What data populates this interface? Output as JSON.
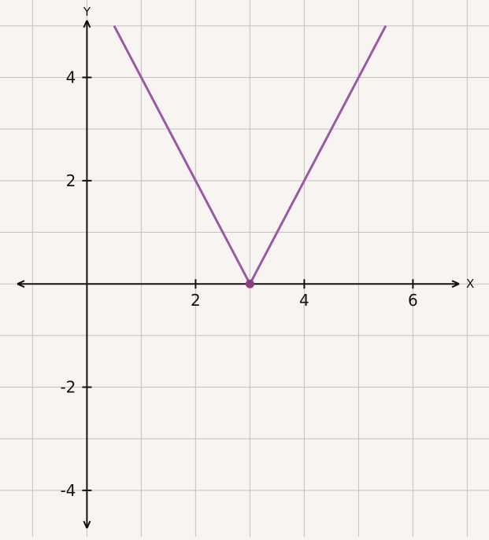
{
  "chart_data": {
    "type": "line",
    "title": "",
    "xlabel": "X",
    "ylabel": "Y",
    "xlim": [
      -1.6,
      7.4
    ],
    "ylim": [
      -4.9,
      5.5
    ],
    "grid": true,
    "x_ticks": [
      2,
      4,
      6
    ],
    "x_tick_labels": [
      "2",
      "4",
      "6"
    ],
    "y_ticks": [
      -4,
      -2,
      2,
      4
    ],
    "y_tick_labels": [
      "-4",
      "-2",
      "2",
      "4"
    ],
    "series": [
      {
        "x": [
          0.5,
          3,
          5.5
        ],
        "y": [
          5,
          0,
          5
        ]
      }
    ],
    "points": [
      {
        "x": 3,
        "y": 0
      }
    ]
  },
  "colors": {
    "background": "#f8f4f1",
    "grid": "#c4c1bf",
    "axis": "#111111",
    "line": "#9a5aa3",
    "point": "#8b3f7e"
  }
}
